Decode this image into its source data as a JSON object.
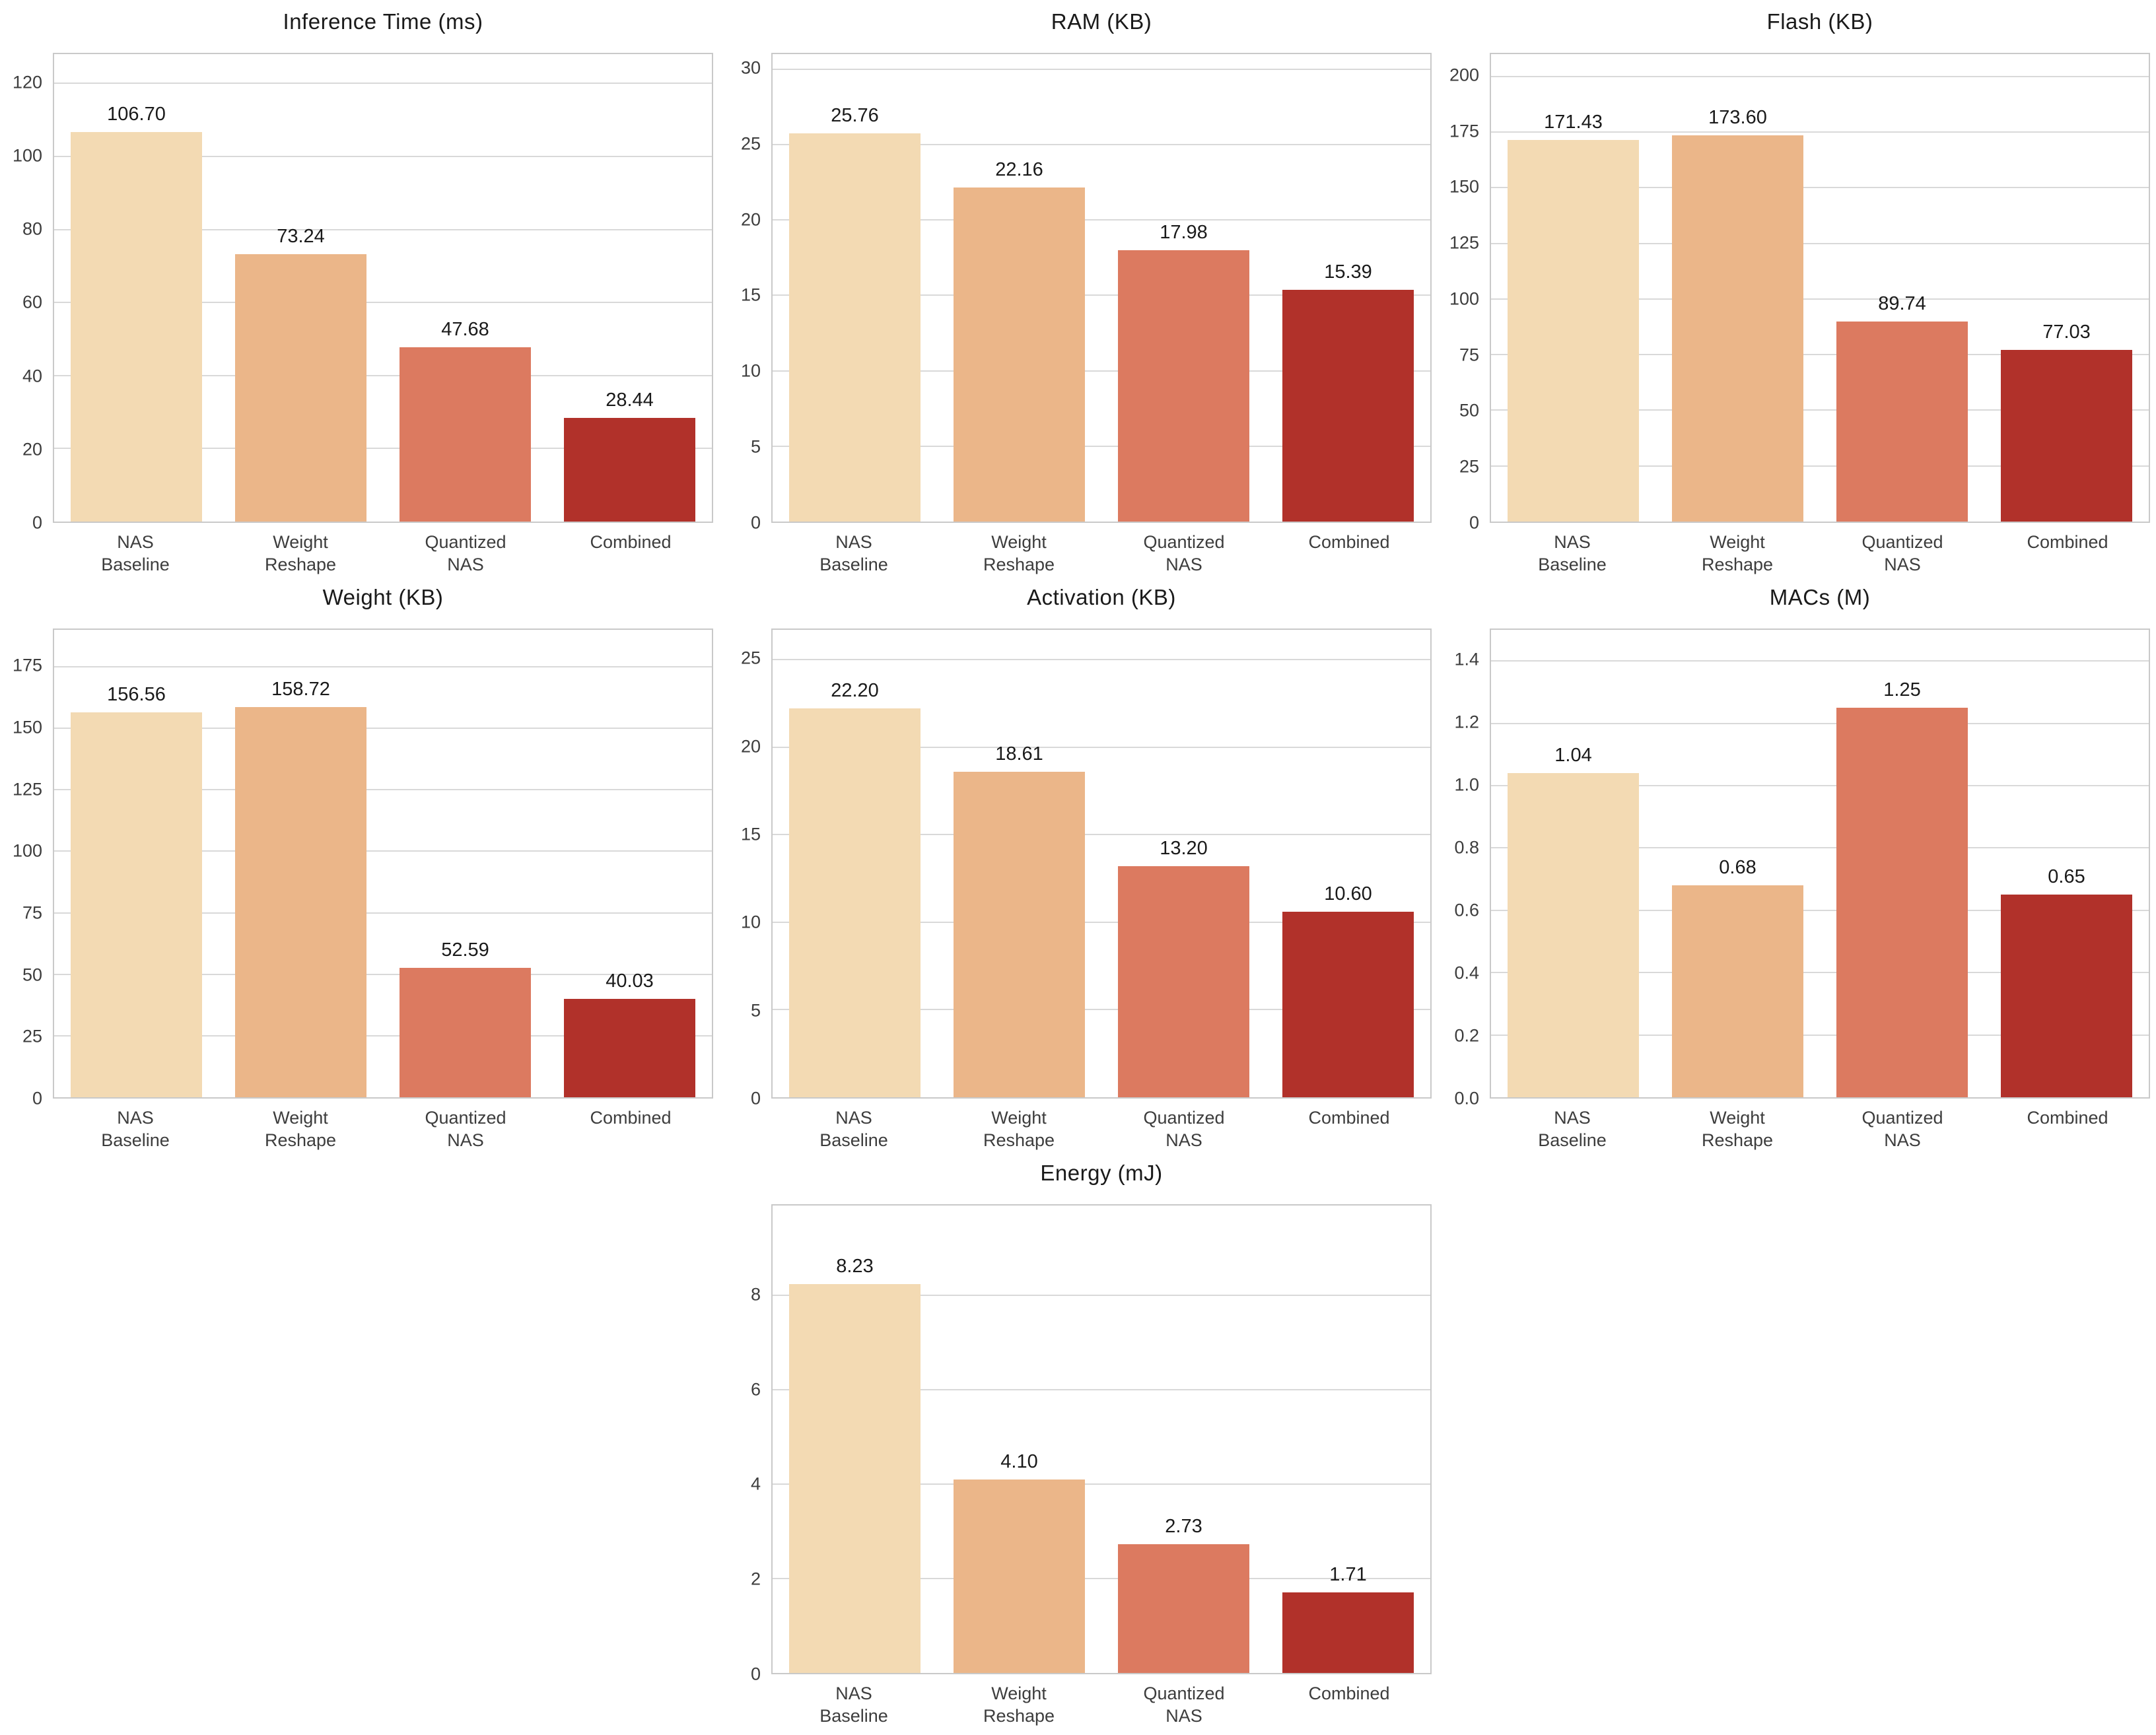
{
  "figure": {
    "background_color": "#ffffff",
    "grid_color": "#d9d9d9",
    "spine_color": "#c9c9c9",
    "title_color": "#1a1a1a",
    "value_label_color": "#1a1a1a",
    "tick_label_color": "#3d3d3d",
    "bar_colors": [
      "#f3dab3",
      "#ebb689",
      "#dc7a60",
      "#b1312a"
    ],
    "layout": "3x3 grid, last chart centered in bottom row"
  },
  "chart_data": [
    {
      "type": "bar",
      "title": "Inference Time (ms)",
      "categories": [
        "NAS\nBaseline",
        "Weight\nReshape",
        "Quantized\nNAS",
        "Combined"
      ],
      "values": [
        106.7,
        73.24,
        47.68,
        28.44
      ],
      "value_labels": [
        "106.70",
        "73.24",
        "47.68",
        "28.44"
      ],
      "yticks": [
        0,
        20,
        40,
        60,
        80,
        100,
        120
      ],
      "ytick_labels": [
        "0",
        "20",
        "40",
        "60",
        "80",
        "100",
        "120"
      ],
      "ylim": [
        0,
        128
      ],
      "grid": true,
      "legend": "none"
    },
    {
      "type": "bar",
      "title": "RAM (KB)",
      "categories": [
        "NAS\nBaseline",
        "Weight\nReshape",
        "Quantized\nNAS",
        "Combined"
      ],
      "values": [
        25.76,
        22.16,
        17.98,
        15.39
      ],
      "value_labels": [
        "25.76",
        "22.16",
        "17.98",
        "15.39"
      ],
      "yticks": [
        0,
        5,
        10,
        15,
        20,
        25,
        30
      ],
      "ytick_labels": [
        "0",
        "5",
        "10",
        "15",
        "20",
        "25",
        "30"
      ],
      "ylim": [
        0,
        31
      ],
      "grid": true,
      "legend": "none"
    },
    {
      "type": "bar",
      "title": "Flash (KB)",
      "categories": [
        "NAS\nBaseline",
        "Weight\nReshape",
        "Quantized\nNAS",
        "Combined"
      ],
      "values": [
        171.43,
        173.6,
        89.74,
        77.03
      ],
      "value_labels": [
        "171.43",
        "173.60",
        "89.74",
        "77.03"
      ],
      "yticks": [
        0,
        25,
        50,
        75,
        100,
        125,
        150,
        175,
        200
      ],
      "ytick_labels": [
        "0",
        "25",
        "50",
        "75",
        "100",
        "125",
        "150",
        "175",
        "200"
      ],
      "ylim": [
        0,
        210
      ],
      "grid": true,
      "legend": "none"
    },
    {
      "type": "bar",
      "title": "Weight (KB)",
      "categories": [
        "NAS\nBaseline",
        "Weight\nReshape",
        "Quantized\nNAS",
        "Combined"
      ],
      "values": [
        156.56,
        158.72,
        52.59,
        40.03
      ],
      "value_labels": [
        "156.56",
        "158.72",
        "52.59",
        "40.03"
      ],
      "yticks": [
        0,
        25,
        50,
        75,
        100,
        125,
        150,
        175
      ],
      "ytick_labels": [
        "0",
        "25",
        "50",
        "75",
        "100",
        "125",
        "150",
        "175"
      ],
      "ylim": [
        0,
        190
      ],
      "grid": true,
      "legend": "none"
    },
    {
      "type": "bar",
      "title": "Activation (KB)",
      "categories": [
        "NAS\nBaseline",
        "Weight\nReshape",
        "Quantized\nNAS",
        "Combined"
      ],
      "values": [
        22.2,
        18.61,
        13.2,
        10.6
      ],
      "value_labels": [
        "22.20",
        "18.61",
        "13.20",
        "10.60"
      ],
      "yticks": [
        0,
        5,
        10,
        15,
        20,
        25
      ],
      "ytick_labels": [
        "0",
        "5",
        "10",
        "15",
        "20",
        "25"
      ],
      "ylim": [
        0,
        26.7
      ],
      "grid": true,
      "legend": "none"
    },
    {
      "type": "bar",
      "title": "MACs (M)",
      "categories": [
        "NAS\nBaseline",
        "Weight\nReshape",
        "Quantized\nNAS",
        "Combined"
      ],
      "values": [
        1.04,
        0.68,
        1.25,
        0.65
      ],
      "value_labels": [
        "1.04",
        "0.68",
        "1.25",
        "0.65"
      ],
      "yticks": [
        0.0,
        0.2,
        0.4,
        0.6,
        0.8,
        1.0,
        1.2,
        1.4
      ],
      "ytick_labels": [
        "0.0",
        "0.2",
        "0.4",
        "0.6",
        "0.8",
        "1.0",
        "1.2",
        "1.4"
      ],
      "ylim": [
        0,
        1.5
      ],
      "grid": true,
      "legend": "none"
    },
    {
      "type": "bar",
      "title": "Energy (mJ)",
      "categories": [
        "NAS\nBaseline",
        "Weight\nReshape",
        "Quantized\nNAS",
        "Combined"
      ],
      "values": [
        8.23,
        4.1,
        2.73,
        1.71
      ],
      "value_labels": [
        "8.23",
        "4.10",
        "2.73",
        "1.71"
      ],
      "yticks": [
        0,
        2,
        4,
        6,
        8
      ],
      "ytick_labels": [
        "0",
        "2",
        "4",
        "6",
        "8"
      ],
      "ylim": [
        0,
        9.9
      ],
      "grid": true,
      "legend": "none"
    }
  ]
}
